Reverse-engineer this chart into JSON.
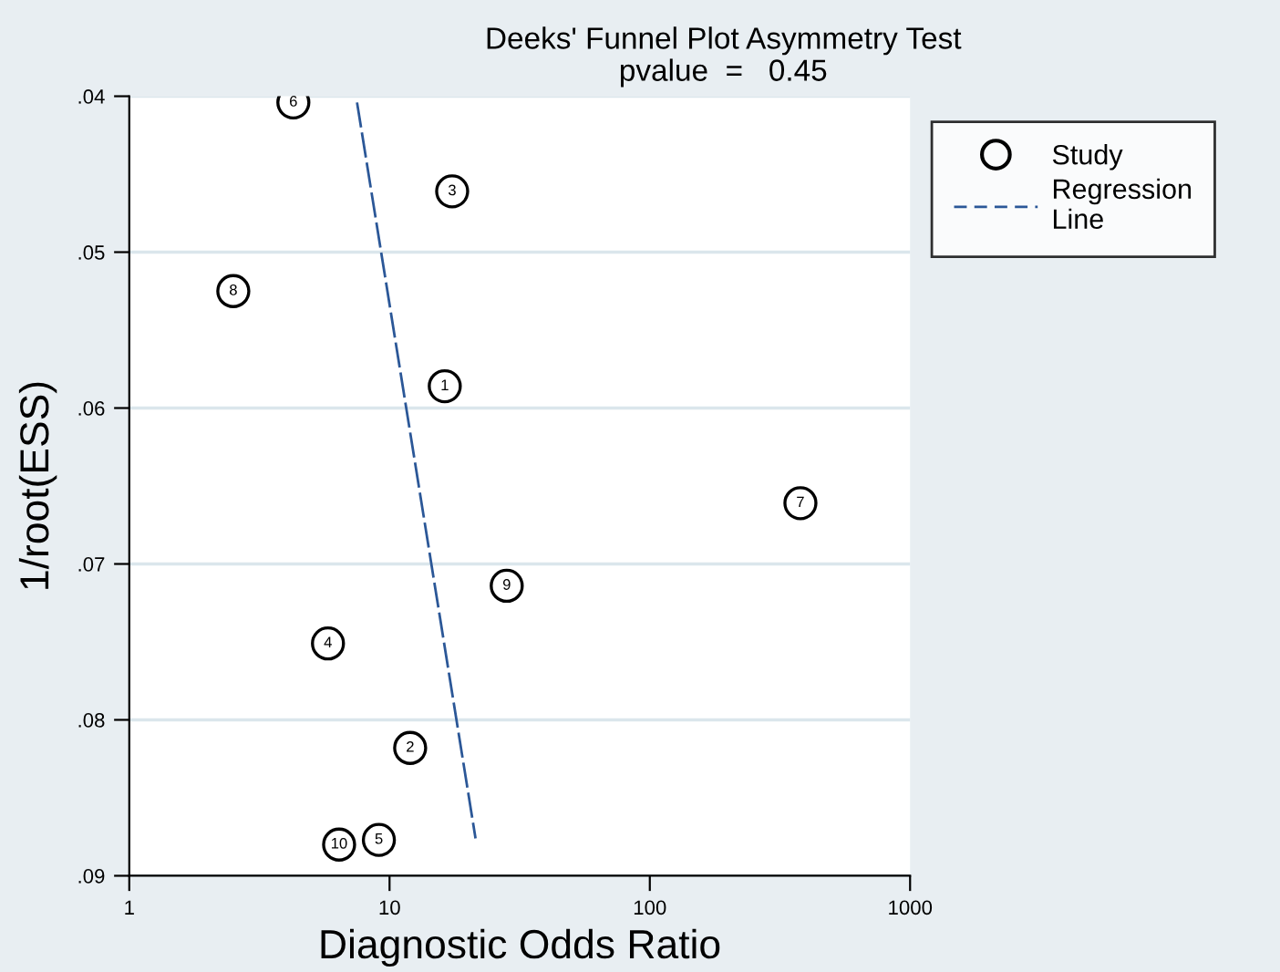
{
  "chart_data": {
    "type": "scatter",
    "title": "Deeks' Funnel Plot Asymmetry Test",
    "subtitle": "pvalue  =   0.45",
    "xlabel": "Diagnostic Odds Ratio",
    "ylabel": "1/root(ESS)",
    "log": "x",
    "xlim": [
      1,
      1000
    ],
    "xticks": [
      1,
      10,
      100,
      1000
    ],
    "ylim": [
      0.09,
      0.04
    ],
    "yticks": [
      {
        "value": 0.04,
        "label": ".04"
      },
      {
        "value": 0.05,
        "label": ".05"
      },
      {
        "value": 0.06,
        "label": ".06"
      },
      {
        "value": 0.07,
        "label": ".07"
      },
      {
        "value": 0.08,
        "label": ".08"
      },
      {
        "value": 0.09,
        "label": ".09"
      }
    ],
    "grid": "y",
    "legend": "top right",
    "annotations": [
      {
        "text": "1",
        "x": 16.3,
        "y": 0.0586
      },
      {
        "text": "2",
        "x": 12.0,
        "y": 0.0818
      },
      {
        "text": "3",
        "x": 17.4,
        "y": 0.0461
      },
      {
        "text": "4",
        "x": 5.8,
        "y": 0.0751
      },
      {
        "text": "5",
        "x": 9.1,
        "y": 0.0877
      },
      {
        "text": "6",
        "x": 4.27,
        "y": 0.0404
      },
      {
        "text": "7",
        "x": 379,
        "y": 0.0661
      },
      {
        "text": "8",
        "x": 2.51,
        "y": 0.0525
      },
      {
        "text": "9",
        "x": 28.2,
        "y": 0.0714
      },
      {
        "text": "10",
        "x": 6.4,
        "y": 0.088
      }
    ],
    "series": [
      {
        "name": "Study",
        "marker": "circle",
        "color": "#000000",
        "x": [
          16.3,
          12.0,
          17.4,
          5.8,
          9.1,
          4.27,
          379,
          2.51,
          28.2,
          6.4
        ],
        "values": [
          0.0586,
          0.0818,
          0.0461,
          0.0751,
          0.0877,
          0.0404,
          0.0661,
          0.0525,
          0.0714,
          0.088
        ]
      },
      {
        "name": "Regression Line",
        "type": "line",
        "line_style": "dashed",
        "color": "#2b5797",
        "x": [
          7.5,
          21.4
        ],
        "values": [
          0.0404,
          0.0876
        ]
      }
    ]
  }
}
